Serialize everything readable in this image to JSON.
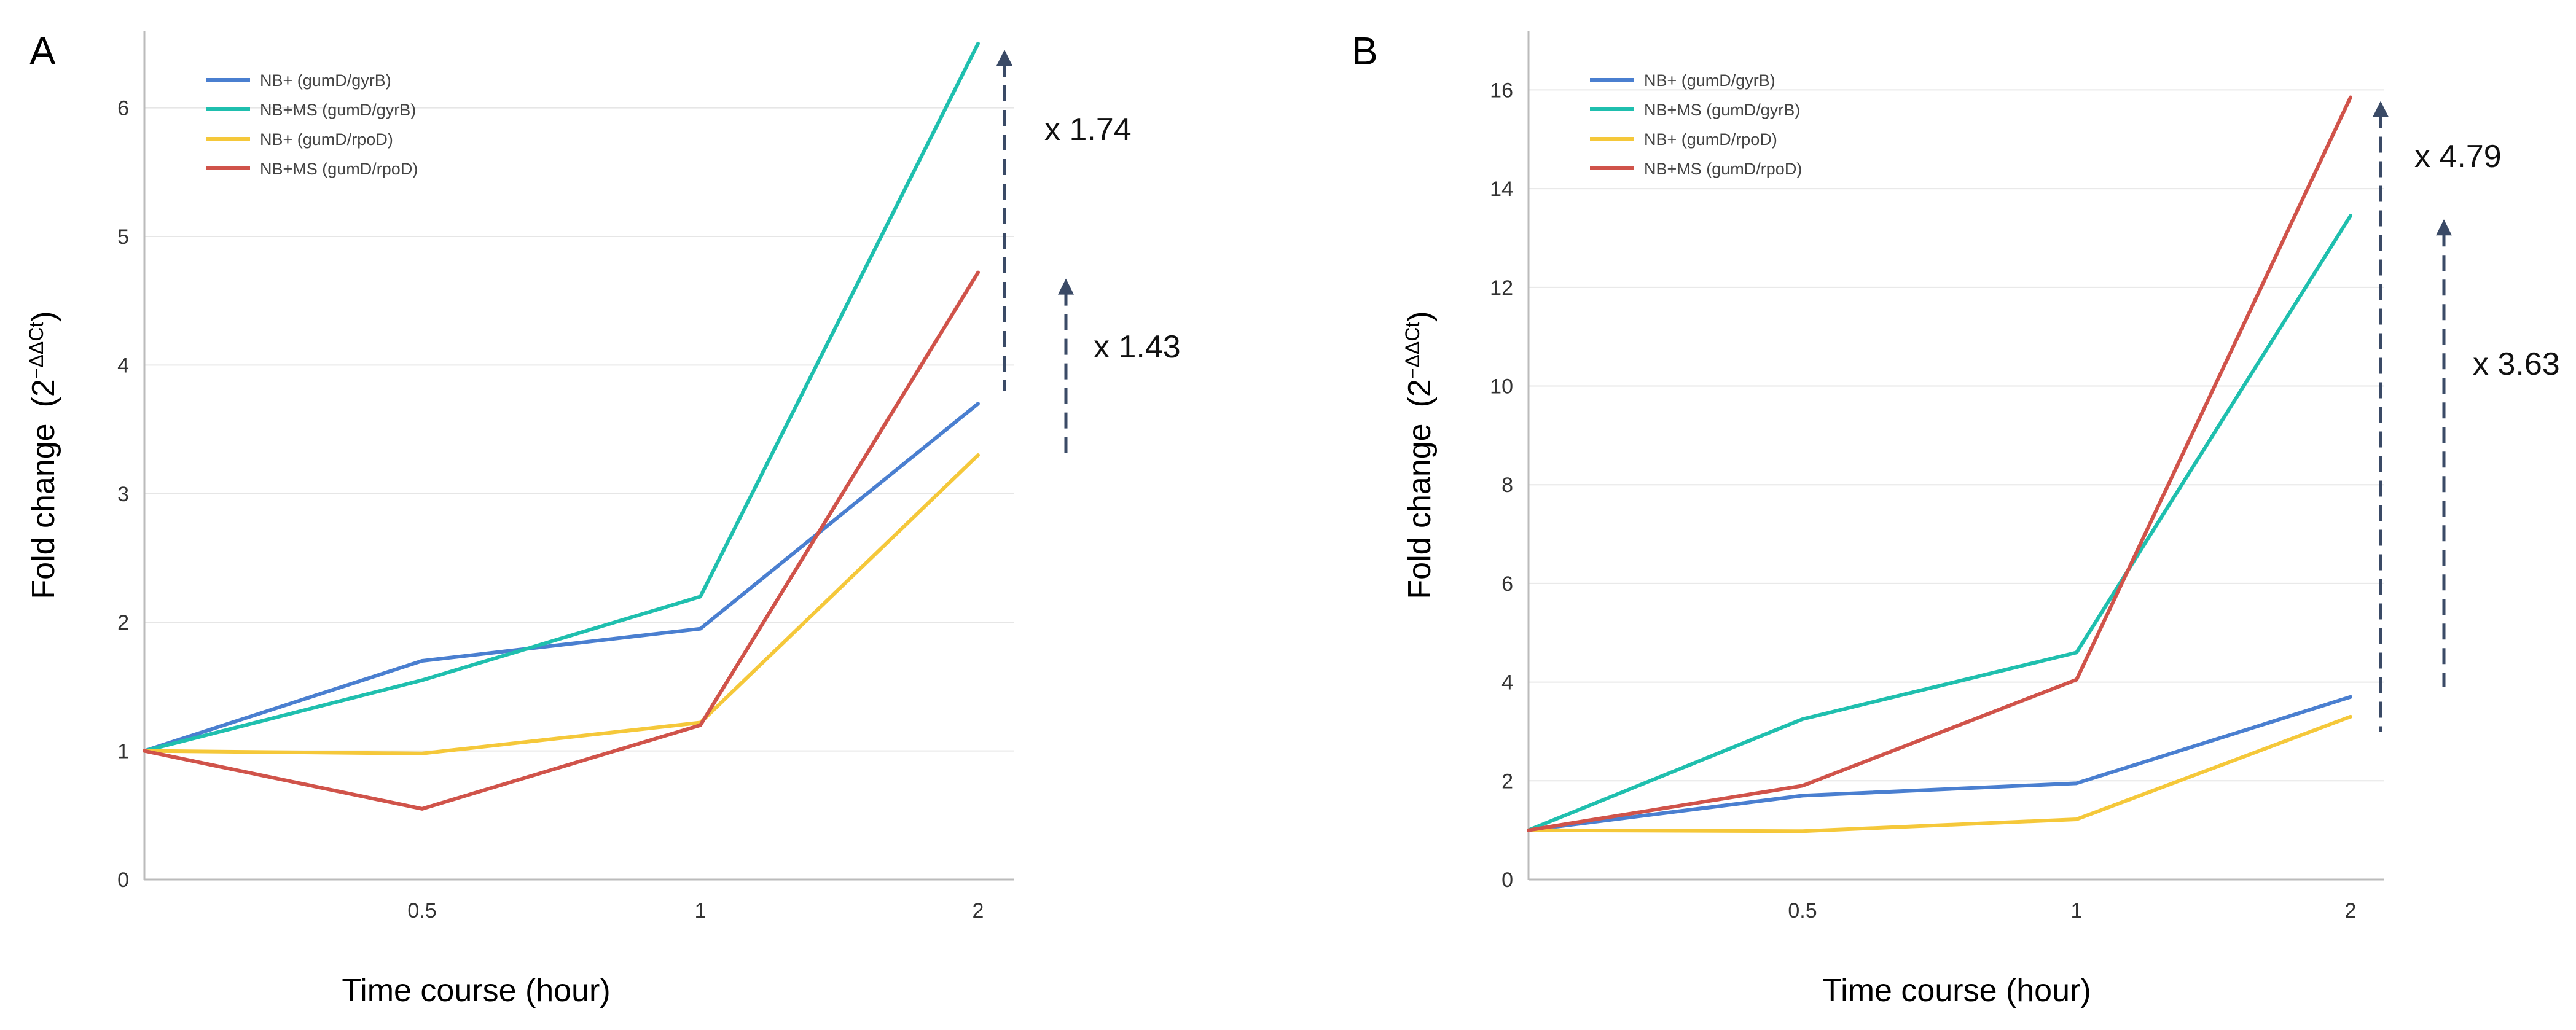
{
  "chart_data": [
    {
      "type": "line",
      "panel": "A",
      "title": "",
      "xlabel": "Time course (hour)",
      "ylabel": "Fold change",
      "ylabel_formula": {
        "base": "(2",
        "exponent": "−ΔΔCt",
        "close": ")"
      },
      "x_ticks": [
        "0.5",
        "1",
        "2"
      ],
      "y_ticks": [
        "0",
        "1",
        "2",
        "3",
        "4",
        "5",
        "6"
      ],
      "ylim": [
        0,
        6.6
      ],
      "grid": true,
      "legend_position": "top-left",
      "series": [
        {
          "name": "NB+ (gumD/gyrB)",
          "color": "#4a7fd0",
          "values": [
            1.0,
            1.7,
            1.95,
            3.7
          ]
        },
        {
          "name": "NB+MS (gumD/gyrB)",
          "color": "#1fbfae",
          "values": [
            1.0,
            1.55,
            2.2,
            6.5
          ]
        },
        {
          "name": "NB+ (gumD/rpoD)",
          "color": "#f5c83a",
          "values": [
            1.0,
            0.98,
            1.22,
            3.3
          ]
        },
        {
          "name": "NB+MS (gumD/rpoD)",
          "color": "#d0534a",
          "values": [
            1.0,
            0.55,
            1.2,
            4.72
          ]
        }
      ],
      "annotations": [
        {
          "label": "x 1.74",
          "from": 3.8,
          "to": 6.5
        },
        {
          "label": "x 1.43",
          "from": 3.3,
          "to": 4.72
        }
      ]
    },
    {
      "type": "line",
      "panel": "B",
      "title": "",
      "xlabel": "Time course (hour)",
      "ylabel": "Fold change",
      "ylabel_formula": {
        "base": "(2",
        "exponent": "−ΔΔCt",
        "close": ")"
      },
      "x_ticks": [
        "0.5",
        "1",
        "2"
      ],
      "y_ticks": [
        "0",
        "2",
        "4",
        "6",
        "8",
        "10",
        "12",
        "14",
        "16"
      ],
      "ylim": [
        0,
        17.2
      ],
      "grid": true,
      "legend_position": "top-left",
      "series": [
        {
          "name": "NB+ (gumD/gyrB)",
          "color": "#4a7fd0",
          "values": [
            1.0,
            1.7,
            1.95,
            3.7
          ]
        },
        {
          "name": "NB+MS (gumD/gyrB)",
          "color": "#1fbfae",
          "values": [
            1.0,
            3.25,
            4.6,
            13.45
          ]
        },
        {
          "name": "NB+ (gumD/rpoD)",
          "color": "#f5c83a",
          "values": [
            1.0,
            0.98,
            1.22,
            3.3
          ]
        },
        {
          "name": "NB+MS (gumD/rpoD)",
          "color": "#d0534a",
          "values": [
            1.0,
            1.9,
            4.05,
            15.85
          ]
        }
      ],
      "annotations": [
        {
          "label": "x 4.79",
          "from": 3.0,
          "to": 15.9
        },
        {
          "label": "x 3.63",
          "from": 3.9,
          "to": 13.5
        }
      ]
    }
  ]
}
